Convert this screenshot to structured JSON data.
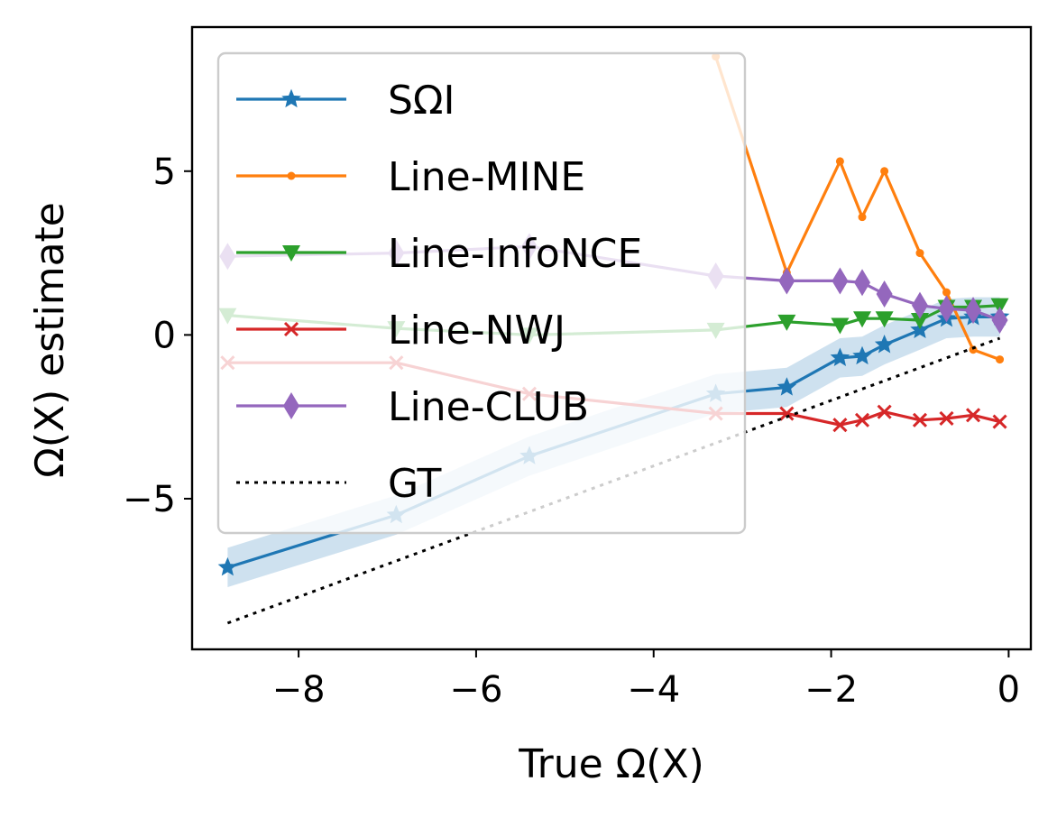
{
  "chart_data": {
    "type": "line",
    "xlabel": "True Ω(X)",
    "ylabel": "Ω(X) estimate",
    "xlim": [
      -9.2,
      0.25
    ],
    "ylim": [
      -9.6,
      9.4
    ],
    "xticks": [
      -8,
      -6,
      -4,
      -2,
      0
    ],
    "yticks": [
      -5,
      0,
      5
    ],
    "xtick_labels": [
      "−8",
      "−6",
      "−4",
      "−2",
      "0"
    ],
    "ytick_labels": [
      "−5",
      "0",
      "5"
    ],
    "grid": false,
    "legend_position": "upper-left",
    "series": [
      {
        "name": "SΩI",
        "color": "#1f77b4",
        "marker": "star",
        "band": 0.6,
        "points": [
          [
            -8.8,
            -7.1
          ],
          [
            -6.9,
            -5.5
          ],
          [
            -5.4,
            -3.7
          ],
          [
            -3.3,
            -1.8
          ],
          [
            -2.5,
            -1.6
          ],
          [
            -1.9,
            -0.7
          ],
          [
            -1.65,
            -0.65
          ],
          [
            -1.4,
            -0.3
          ],
          [
            -1.0,
            0.15
          ],
          [
            -0.7,
            0.5
          ],
          [
            -0.4,
            0.55
          ],
          [
            -0.1,
            0.55
          ]
        ]
      },
      {
        "name": "Line-MINE",
        "color": "#ff7f0e",
        "marker": "point",
        "points": [
          [
            -3.3,
            8.5
          ],
          [
            -2.5,
            1.9
          ],
          [
            -1.9,
            5.3
          ],
          [
            -1.65,
            3.6
          ],
          [
            -1.4,
            5.0
          ],
          [
            -1.0,
            2.5
          ],
          [
            -0.7,
            1.3
          ],
          [
            -0.4,
            -0.45
          ],
          [
            -0.1,
            -0.75
          ]
        ]
      },
      {
        "name": "Line-InfoNCE",
        "color": "#2ca02c",
        "marker": "triangle-down",
        "points": [
          [
            -8.8,
            0.6
          ],
          [
            -6.9,
            0.2
          ],
          [
            -5.4,
            0.0
          ],
          [
            -3.3,
            0.15
          ],
          [
            -2.5,
            0.4
          ],
          [
            -1.9,
            0.3
          ],
          [
            -1.65,
            0.5
          ],
          [
            -1.4,
            0.5
          ],
          [
            -1.0,
            0.45
          ],
          [
            -0.7,
            0.85
          ],
          [
            -0.4,
            0.85
          ],
          [
            -0.1,
            0.9
          ]
        ]
      },
      {
        "name": "Line-NWJ",
        "color": "#d62728",
        "marker": "x",
        "points": [
          [
            -8.8,
            -0.85
          ],
          [
            -6.9,
            -0.85
          ],
          [
            -5.4,
            -1.8
          ],
          [
            -3.3,
            -2.4
          ],
          [
            -2.5,
            -2.4
          ],
          [
            -1.9,
            -2.75
          ],
          [
            -1.65,
            -2.6
          ],
          [
            -1.4,
            -2.35
          ],
          [
            -1.0,
            -2.6
          ],
          [
            -0.7,
            -2.55
          ],
          [
            -0.4,
            -2.45
          ],
          [
            -0.1,
            -2.65
          ]
        ]
      },
      {
        "name": "Line-CLUB",
        "color": "#9467bd",
        "marker": "thin-diamond",
        "points": [
          [
            -8.8,
            2.4
          ],
          [
            -6.9,
            2.5
          ],
          [
            -5.4,
            2.7
          ],
          [
            -3.3,
            1.8
          ],
          [
            -2.5,
            1.65
          ],
          [
            -1.9,
            1.65
          ],
          [
            -1.65,
            1.6
          ],
          [
            -1.4,
            1.25
          ],
          [
            -1.0,
            0.9
          ],
          [
            -0.7,
            0.8
          ],
          [
            -0.4,
            0.75
          ],
          [
            -0.1,
            0.45
          ]
        ]
      },
      {
        "name": "GT",
        "color": "#000000",
        "marker": "none",
        "dashed": true,
        "points": [
          [
            -8.8,
            -8.8
          ],
          [
            -0.1,
            -0.1
          ]
        ]
      }
    ]
  }
}
